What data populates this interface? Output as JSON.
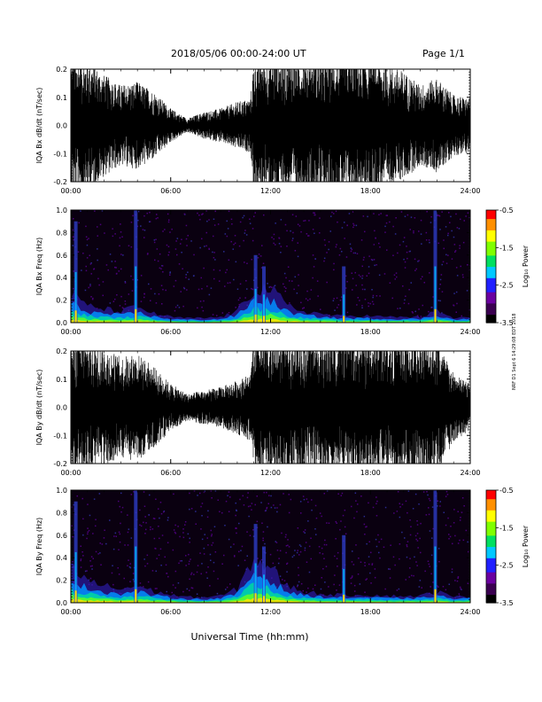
{
  "header": {
    "title": "2018/05/06  00:00-24:00 UT",
    "page": "Page 1/1"
  },
  "side_credit": "NRF D1 Sept 6 14:29:08 EDT 2018",
  "xaxis": {
    "label": "Universal Time (hh:mm)",
    "ticks": [
      "00:00",
      "06:00",
      "12:00",
      "18:00",
      "24:00"
    ],
    "range_hours": [
      0,
      24
    ]
  },
  "colorbar": {
    "label": "Log₁₀ Power",
    "ticks": [
      "-0.5",
      "-1.5",
      "-2.5",
      "-3.5"
    ],
    "range": [
      -3.5,
      -0.5
    ],
    "colors": [
      "#000000",
      "#3a0050",
      "#6a00a0",
      "#2020ff",
      "#00c8ff",
      "#00e060",
      "#80ff00",
      "#ffff00",
      "#ff9000",
      "#ff0000"
    ]
  },
  "chart_data": [
    {
      "type": "line",
      "ylabel": "IQA Bx dB/dt (nT/sec)",
      "ylim": [
        -0.2,
        0.2
      ],
      "yticks": [
        "0.2",
        "0.1",
        "0.0",
        "-0.1",
        "-0.2"
      ],
      "x_hours": [
        0,
        1,
        2,
        3,
        4,
        5,
        6,
        7,
        8,
        9,
        10,
        10.8,
        11,
        12,
        13,
        14,
        15,
        16,
        17,
        18,
        19,
        20,
        21,
        22,
        23,
        24
      ],
      "amplitude": [
        0.2,
        0.2,
        0.15,
        0.12,
        0.13,
        0.1,
        0.05,
        0.02,
        0.04,
        0.05,
        0.07,
        0.08,
        0.2,
        0.2,
        0.2,
        0.2,
        0.2,
        0.2,
        0.2,
        0.2,
        0.18,
        0.16,
        0.12,
        0.14,
        0.09,
        0.08
      ],
      "color": "#000000"
    },
    {
      "type": "heatmap",
      "ylabel": "IQA Bx Freq (Hz)",
      "ylim": [
        0,
        1.0
      ],
      "yticks": [
        "1.0",
        "0.8",
        "0.6",
        "0.4",
        "0.2",
        "0.0"
      ],
      "background_log_power": -3.5,
      "low_freq_band": {
        "x_hours": [
          0,
          1,
          2,
          3,
          4,
          5,
          6,
          7,
          8,
          9,
          10,
          11,
          12,
          13,
          14,
          15,
          16,
          17,
          18,
          19,
          20,
          21,
          22,
          23,
          24
        ],
        "top_hz": [
          0.25,
          0.15,
          0.12,
          0.1,
          0.14,
          0.08,
          0.05,
          0.04,
          0.04,
          0.05,
          0.1,
          0.3,
          0.3,
          0.15,
          0.1,
          0.08,
          0.06,
          0.06,
          0.06,
          0.05,
          0.05,
          0.05,
          0.1,
          0.04,
          0.05
        ]
      },
      "bursts": [
        {
          "x": 0.3,
          "top": 0.9
        },
        {
          "x": 3.9,
          "top": 1.0
        },
        {
          "x": 11.1,
          "top": 0.6
        },
        {
          "x": 11.6,
          "top": 0.5
        },
        {
          "x": 16.4,
          "top": 0.5
        },
        {
          "x": 21.9,
          "top": 1.0
        }
      ]
    },
    {
      "type": "line",
      "ylabel": "IQA By dB/dt (nT/sec)",
      "ylim": [
        -0.2,
        0.2
      ],
      "yticks": [
        "0.2",
        "0.1",
        "0.0",
        "-0.1",
        "-0.2"
      ],
      "x_hours": [
        0,
        1,
        2,
        3,
        4,
        5,
        6,
        7,
        8,
        9,
        10,
        10.8,
        11,
        12,
        13,
        14,
        15,
        16,
        17,
        18,
        19,
        20,
        21,
        22,
        23,
        24
      ],
      "amplitude": [
        0.2,
        0.2,
        0.18,
        0.15,
        0.16,
        0.12,
        0.07,
        0.04,
        0.05,
        0.06,
        0.08,
        0.1,
        0.2,
        0.2,
        0.2,
        0.2,
        0.2,
        0.2,
        0.2,
        0.2,
        0.2,
        0.2,
        0.2,
        0.2,
        0.1,
        0.07
      ],
      "color": "#000000"
    },
    {
      "type": "heatmap",
      "ylabel": "IQA By Freq (Hz)",
      "ylim": [
        0,
        1.0
      ],
      "yticks": [
        "1.0",
        "0.8",
        "0.6",
        "0.4",
        "0.2",
        "0.0"
      ],
      "background_log_power": -3.5,
      "low_freq_band": {
        "x_hours": [
          0,
          1,
          2,
          3,
          4,
          5,
          6,
          7,
          8,
          9,
          10,
          11,
          12,
          13,
          14,
          15,
          16,
          17,
          18,
          19,
          20,
          21,
          22,
          23,
          24
        ],
        "top_hz": [
          0.3,
          0.2,
          0.15,
          0.12,
          0.15,
          0.1,
          0.07,
          0.05,
          0.05,
          0.06,
          0.12,
          0.4,
          0.3,
          0.15,
          0.1,
          0.08,
          0.07,
          0.07,
          0.07,
          0.06,
          0.06,
          0.06,
          0.1,
          0.05,
          0.06
        ]
      },
      "bursts": [
        {
          "x": 0.3,
          "top": 0.9
        },
        {
          "x": 3.9,
          "top": 1.0
        },
        {
          "x": 11.1,
          "top": 0.7
        },
        {
          "x": 11.6,
          "top": 0.5
        },
        {
          "x": 16.4,
          "top": 0.6
        },
        {
          "x": 21.9,
          "top": 1.0
        }
      ]
    }
  ]
}
